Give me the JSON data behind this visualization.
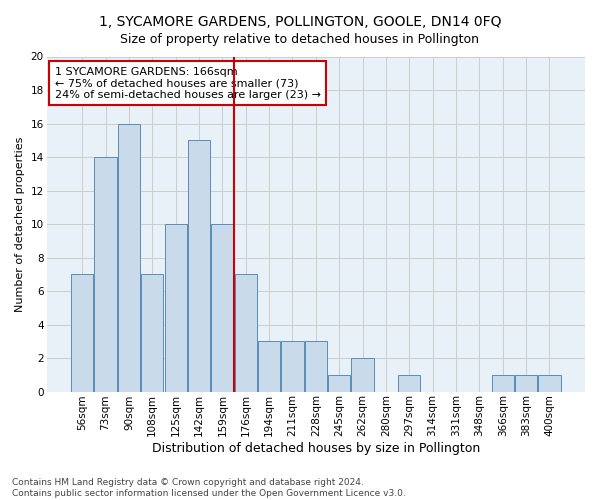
{
  "title": "1, SYCAMORE GARDENS, POLLINGTON, GOOLE, DN14 0FQ",
  "subtitle": "Size of property relative to detached houses in Pollington",
  "xlabel": "Distribution of detached houses by size in Pollington",
  "ylabel": "Number of detached properties",
  "bins": [
    "56sqm",
    "73sqm",
    "90sqm",
    "108sqm",
    "125sqm",
    "142sqm",
    "159sqm",
    "176sqm",
    "194sqm",
    "211sqm",
    "228sqm",
    "245sqm",
    "262sqm",
    "280sqm",
    "297sqm",
    "314sqm",
    "331sqm",
    "348sqm",
    "366sqm",
    "383sqm",
    "400sqm"
  ],
  "values": [
    7,
    14,
    16,
    7,
    10,
    15,
    10,
    7,
    3,
    3,
    3,
    1,
    2,
    0,
    1,
    0,
    0,
    0,
    1,
    1,
    1
  ],
  "bar_color": "#c9daea",
  "bar_edge_color": "#5b8db8",
  "vline_color": "#cc0000",
  "annotation_text": "1 SYCAMORE GARDENS: 166sqm\n← 75% of detached houses are smaller (73)\n24% of semi-detached houses are larger (23) →",
  "annotation_box_color": "#ffffff",
  "annotation_box_edge": "#cc0000",
  "ylim": [
    0,
    20
  ],
  "yticks": [
    0,
    2,
    4,
    6,
    8,
    10,
    12,
    14,
    16,
    18,
    20
  ],
  "grid_color": "#cccccc",
  "bg_color": "#e8f0f8",
  "footnote": "Contains HM Land Registry data © Crown copyright and database right 2024.\nContains public sector information licensed under the Open Government Licence v3.0.",
  "title_fontsize": 10,
  "subtitle_fontsize": 9,
  "xlabel_fontsize": 9,
  "ylabel_fontsize": 8,
  "tick_fontsize": 7.5,
  "annotation_fontsize": 8,
  "footnote_fontsize": 6.5
}
